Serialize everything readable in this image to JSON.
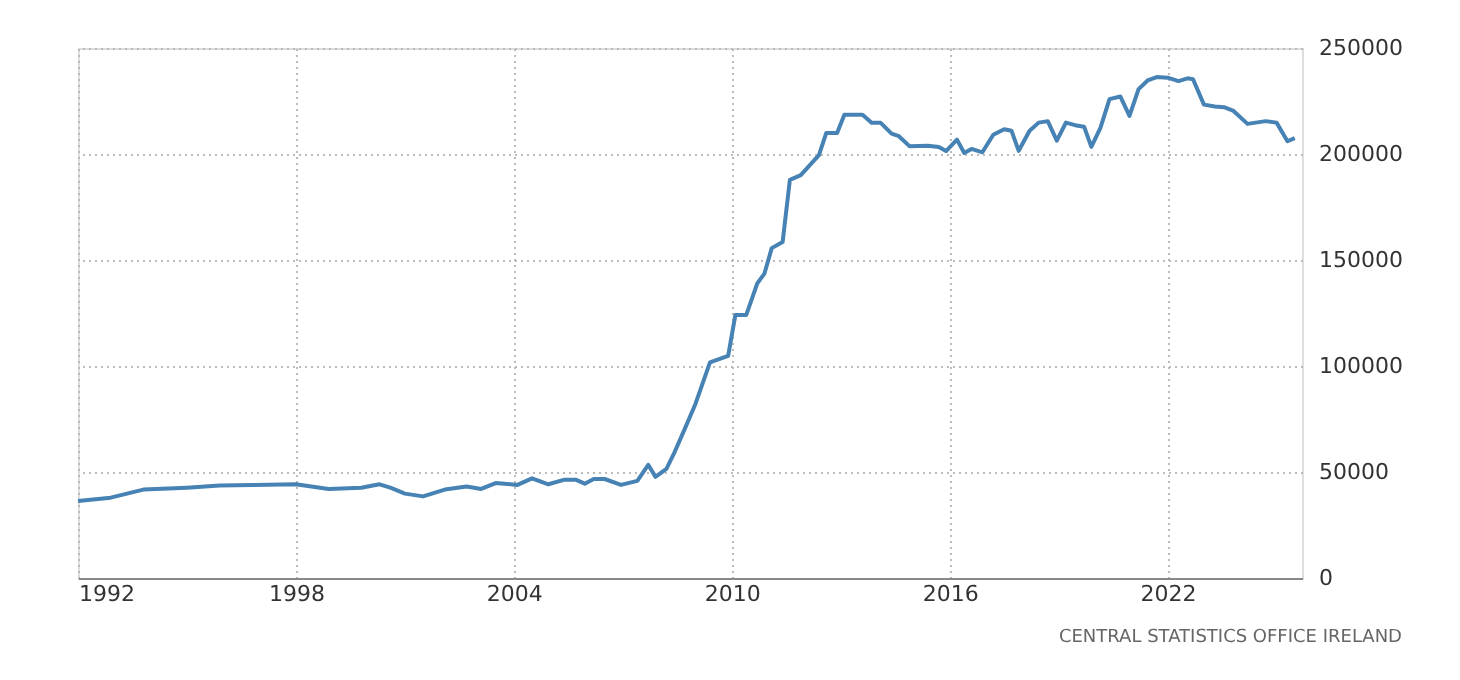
{
  "chart_data": {
    "type": "line",
    "x": [
      1992.0,
      1992.9,
      1993.8,
      1995.0,
      1995.9,
      1996.8,
      1998.0,
      1998.9,
      1999.8,
      2000.3,
      2000.6,
      2001.0,
      2001.5,
      2002.1,
      2002.7,
      2003.1,
      2003.5,
      2004.1,
      2004.5,
      2004.95,
      2005.4,
      2005.7,
      2005.95,
      2006.2,
      2006.5,
      2006.95,
      2007.4,
      2007.7,
      2007.9,
      2008.2,
      2008.4,
      2008.7,
      2009.0,
      2009.4,
      2009.9,
      2010.1,
      2010.4,
      2010.7,
      2010.9,
      2011.1,
      2011.4,
      2011.6,
      2011.9,
      2012.4,
      2012.6,
      2012.9,
      2013.1,
      2013.6,
      2013.85,
      2014.1,
      2014.4,
      2014.6,
      2014.9,
      2015.4,
      2015.7,
      2015.9,
      2016.2,
      2016.4,
      2016.6,
      2016.9,
      2017.2,
      2017.5,
      2017.7,
      2017.9,
      2018.2,
      2018.45,
      2018.7,
      2018.95,
      2019.2,
      2019.45,
      2019.7,
      2019.9,
      2020.15,
      2020.4,
      2020.7,
      2020.95,
      2021.2,
      2021.45,
      2021.7,
      2022.0,
      2022.3,
      2022.55,
      2022.7,
      2023.0,
      2023.3,
      2023.55,
      2023.8,
      2024.2,
      2024.7,
      2025.0,
      2025.3,
      2025.5
    ],
    "series": [
      {
        "color": "#4682b4",
        "values": [
          36300,
          37900,
          41700,
          42600,
          43600,
          43900,
          44200,
          42000,
          42600,
          44200,
          42600,
          39800,
          38500,
          41700,
          43200,
          42000,
          44800,
          43900,
          47000,
          44200,
          46400,
          46400,
          44500,
          46700,
          46700,
          43900,
          45800,
          53400,
          47700,
          51500,
          58400,
          70100,
          82100,
          101700,
          104800,
          124100,
          124100,
          138900,
          143600,
          155600,
          158500,
          187800,
          190000,
          199500,
          209900,
          209900,
          218500,
          218500,
          214700,
          214700,
          209600,
          208400,
          203600,
          203900,
          203300,
          201400,
          206800,
          200500,
          202400,
          200800,
          209100,
          211700,
          211000,
          201500,
          211000,
          214800,
          215500,
          206300,
          214800,
          213600,
          212900,
          203400,
          212300,
          225900,
          227100,
          218000,
          230600,
          234700,
          236300,
          236000,
          234400,
          235700,
          235300,
          223300,
          222400,
          222100,
          220500,
          214200,
          215500,
          214800,
          206000,
          207500
        ]
      }
    ],
    "xlim": [
      1992,
      2025.7
    ],
    "xticks": [
      1992,
      1998,
      2004,
      2010,
      2016,
      2022
    ],
    "ylim": [
      0,
      250000
    ],
    "yticks": [
      0,
      50000,
      100000,
      150000,
      200000,
      250000
    ],
    "grid": true,
    "line_style": "solid",
    "marker": "none",
    "annotations": [
      "CENTRAL STATISTICS OFFICE IRELAND"
    ]
  }
}
